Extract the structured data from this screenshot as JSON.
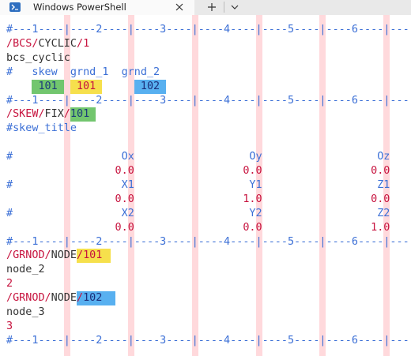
{
  "tab": {
    "title": "Windows PowerShell"
  },
  "lines": [
    [
      "#---1----|----2----|----3----|----4----|----5----|----6----|---"
    ],
    [
      "/BCS/",
      "CYCLIC",
      "/1"
    ],
    [
      "bcs_cyclic"
    ],
    [
      "#",
      "skew",
      "grnd_1",
      "grnd_2"
    ],
    [
      "101",
      "101",
      "102"
    ],
    [
      "#---1----|----2----|----3----|----4----|----5----|----6----|---"
    ],
    [
      "/SKEW/",
      "FIX",
      "/",
      "101"
    ],
    [
      "#skew_title"
    ],
    [
      "#",
      "Ox",
      "Oy",
      "Oz"
    ],
    [
      "0.0",
      "0.0",
      "0.0"
    ],
    [
      "#",
      "X1",
      "Y1",
      "Z1"
    ],
    [
      "0.0",
      "1.0",
      "0.0"
    ],
    [
      "#",
      "X2",
      "Y2",
      "Z2"
    ],
    [
      "0.0",
      "0.0",
      "1.0"
    ],
    [
      "#---1----|----2----|----3----|----4----|----5----|----6----|---"
    ],
    [
      "/GRNOD/",
      "NODE",
      "/",
      "101"
    ],
    [
      "node_2"
    ],
    [
      "2"
    ],
    [
      "/GRNOD/",
      "NODE",
      "/",
      "102"
    ],
    [
      "node_3"
    ],
    [
      "3"
    ],
    [
      "#---1----|----2----|----3----|----4----|----5----|----6----|---"
    ]
  ]
}
